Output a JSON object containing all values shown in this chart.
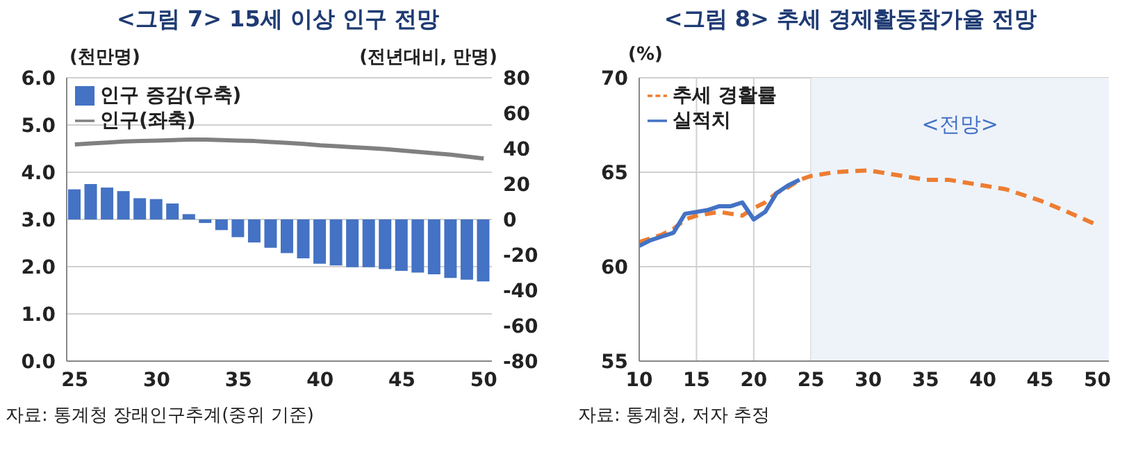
{
  "chart_data": [
    {
      "type": "bar",
      "title": "<그림 7> 15세 이상 인구 전망",
      "ylabel": "(천만명)",
      "y2label": "(전년대비, 만명)",
      "x": [
        25,
        26,
        27,
        28,
        29,
        30,
        31,
        32,
        33,
        34,
        35,
        36,
        37,
        38,
        39,
        40,
        41,
        42,
        43,
        44,
        45,
        46,
        47,
        48,
        49,
        50
      ],
      "series": [
        {
          "name": "인구 증감(우축)",
          "axis": "y2",
          "color": "#4472c4",
          "values": [
            17,
            20,
            18,
            16,
            12,
            11.5,
            9,
            3,
            -2,
            -6,
            -10,
            -13,
            -16,
            -19,
            -22,
            -25,
            -26,
            -27,
            -27,
            -28,
            -29,
            -30,
            -31,
            -33,
            -34,
            -35
          ]
        },
        {
          "name": "인구(좌축)",
          "type": "line",
          "color": "#808080",
          "values": [
            4.59,
            4.61,
            4.63,
            4.65,
            4.66,
            4.67,
            4.68,
            4.69,
            4.69,
            4.68,
            4.67,
            4.66,
            4.64,
            4.62,
            4.6,
            4.57,
            4.55,
            4.53,
            4.51,
            4.49,
            4.46,
            4.43,
            4.4,
            4.37,
            4.33,
            4.29
          ]
        }
      ],
      "xlim": [
        24.5,
        50.5
      ],
      "xticks": [
        25,
        30,
        35,
        40,
        45,
        50
      ],
      "ylim": [
        0,
        6
      ],
      "yticks": [
        {
          "value": 0,
          "label": "0.0"
        },
        {
          "value": 1,
          "label": "1.0"
        },
        {
          "value": 2,
          "label": "2.0"
        },
        {
          "value": 3,
          "label": "3.0"
        },
        {
          "value": 4,
          "label": "4.0"
        },
        {
          "value": 5,
          "label": "5.0"
        },
        {
          "value": 6,
          "label": "6.0"
        }
      ],
      "y2lim": [
        -80,
        80
      ],
      "y2ticks": [
        -80,
        -60,
        -40,
        -20,
        0,
        20,
        40,
        60,
        80
      ],
      "grid": "y",
      "legend": "top left",
      "annotations": [
        "자료: 통계청 장래인구추계(중위 기준)"
      ]
    },
    {
      "type": "line",
      "title": "<그림 8> 추세 경제활동참가율 전망",
      "ylabel": "(%)",
      "series": [
        {
          "name": "추세 경활률",
          "color": "#ed7d31",
          "line_style": "dashed",
          "x": [
            10,
            11,
            12,
            13,
            14,
            15,
            16,
            17,
            18,
            19,
            20,
            21,
            22,
            23,
            24,
            25,
            27,
            30,
            33,
            35,
            37,
            40,
            42,
            45,
            47,
            50
          ],
          "values": [
            61.3,
            61.5,
            61.7,
            62.0,
            62.5,
            62.7,
            62.8,
            62.9,
            62.8,
            62.7,
            63.1,
            63.4,
            63.9,
            64.2,
            64.6,
            64.8,
            65.0,
            65.1,
            64.8,
            64.6,
            64.6,
            64.3,
            64.1,
            63.5,
            63.0,
            62.2
          ]
        },
        {
          "name": "실적치",
          "color": "#4472c4",
          "x": [
            10,
            11,
            12,
            13,
            14,
            15,
            16,
            17,
            18,
            19,
            20,
            21,
            22,
            23,
            24
          ],
          "values": [
            61.1,
            61.4,
            61.6,
            61.8,
            62.8,
            62.9,
            63.0,
            63.2,
            63.2,
            63.4,
            62.5,
            62.9,
            63.9,
            64.3,
            64.6
          ]
        }
      ],
      "xlim": [
        10,
        51
      ],
      "xticks": [
        10,
        15,
        20,
        25,
        30,
        35,
        40,
        45,
        50
      ],
      "ylim": [
        55,
        70
      ],
      "yticks": [
        55,
        60,
        65,
        70
      ],
      "bands": [
        {
          "axis": "x",
          "from": 25,
          "to": 51,
          "label": "<전망>",
          "color": "#eef3fa"
        }
      ],
      "grid": true,
      "legend": "top left",
      "annotations": [
        "자료: 통계청, 저자 추정"
      ]
    }
  ]
}
